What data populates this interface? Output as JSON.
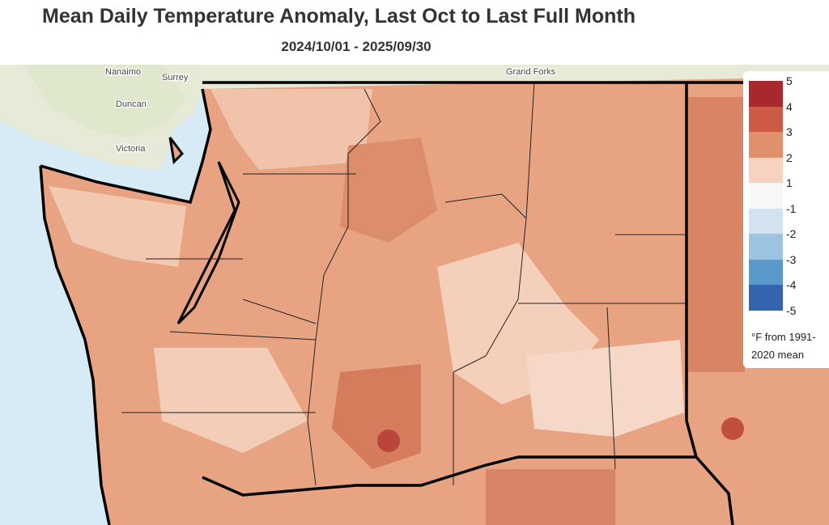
{
  "header": {
    "title": "Mean Daily Temperature Anomaly, Last Oct to Last Full Month",
    "subtitle": "2024/10/01 - 2025/09/30"
  },
  "legend": {
    "labels": [
      5,
      4,
      3,
      2,
      1,
      -1,
      -2,
      -3,
      -4,
      -5
    ],
    "colors": [
      "#a8282e",
      "#cc5a45",
      "#e0916b",
      "#f6d3c1",
      "#f7f7f7",
      "#d3e2ef",
      "#9bc4e1",
      "#5a99cc",
      "#3464ad"
    ],
    "note": "°F from 1991-2020 mean"
  },
  "map": {
    "places": [
      "Nanaimo",
      "Surrey",
      "Duncan",
      "Victoria",
      "Grand Forks"
    ]
  }
}
